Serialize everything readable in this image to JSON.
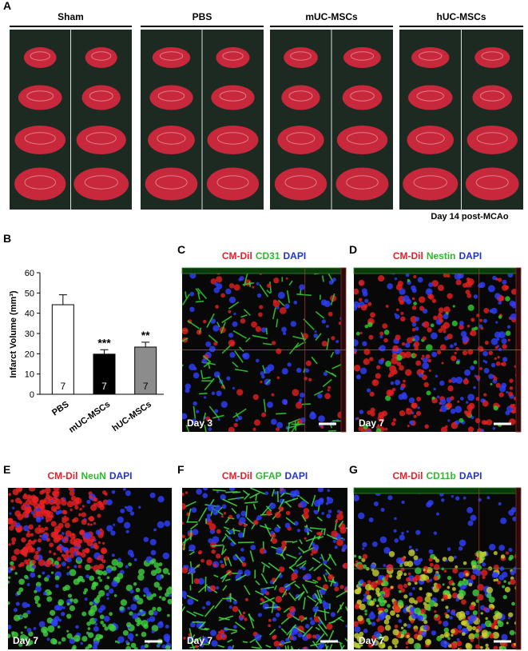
{
  "figure": {
    "panel_a": {
      "label": "A",
      "groups": [
        "Sham",
        "PBS",
        "mUC-MSCs",
        "hUC-MSCs"
      ],
      "caption": "Day 14 post-MCAo"
    },
    "panel_b_label": "B",
    "image_panels": [
      {
        "label": "C",
        "stains": [
          {
            "text": "CM-Dil",
            "color": "#e8202a"
          },
          {
            "text": "CD31",
            "color": "#2fb82f"
          },
          {
            "text": "DAPI",
            "color": "#2233cc"
          }
        ],
        "day": "Day 3"
      },
      {
        "label": "D",
        "stains": [
          {
            "text": "CM-Dil",
            "color": "#e8202a"
          },
          {
            "text": "Nestin",
            "color": "#2fb82f"
          },
          {
            "text": "DAPI",
            "color": "#2233cc"
          }
        ],
        "day": "Day 7"
      },
      {
        "label": "E",
        "stains": [
          {
            "text": "CM-Dil",
            "color": "#e8202a"
          },
          {
            "text": "NeuN",
            "color": "#2fb82f"
          },
          {
            "text": "DAPI",
            "color": "#2233cc"
          }
        ],
        "day": "Day 7"
      },
      {
        "label": "F",
        "stains": [
          {
            "text": "CM-Dil",
            "color": "#e8202a"
          },
          {
            "text": "GFAP",
            "color": "#2fb82f"
          },
          {
            "text": "DAPI",
            "color": "#2233cc"
          }
        ],
        "day": "Day 7"
      },
      {
        "label": "G",
        "stains": [
          {
            "text": "CM-Dil",
            "color": "#e8202a"
          },
          {
            "text": "CD11b",
            "color": "#2fb82f"
          },
          {
            "text": "DAPI",
            "color": "#2233cc"
          }
        ],
        "day": "Day 7"
      }
    ]
  },
  "chart_data": {
    "type": "bar",
    "y_label": "Infarct Volume (mm³)",
    "categories": [
      "PBS",
      "mUC-MSCs",
      "hUC-MSCs"
    ],
    "values": [
      44.2,
      19.8,
      23.3
    ],
    "errors": [
      4.9,
      2.2,
      2.4
    ],
    "colors": [
      "#ffffff",
      "#000000",
      "#8c8c8c"
    ],
    "sample_sizes": [
      7,
      7,
      7
    ],
    "significance": [
      null,
      "***",
      "**"
    ],
    "ylim": [
      0,
      60
    ],
    "yticks": [
      0,
      10,
      20,
      30,
      40,
      50,
      60
    ]
  }
}
